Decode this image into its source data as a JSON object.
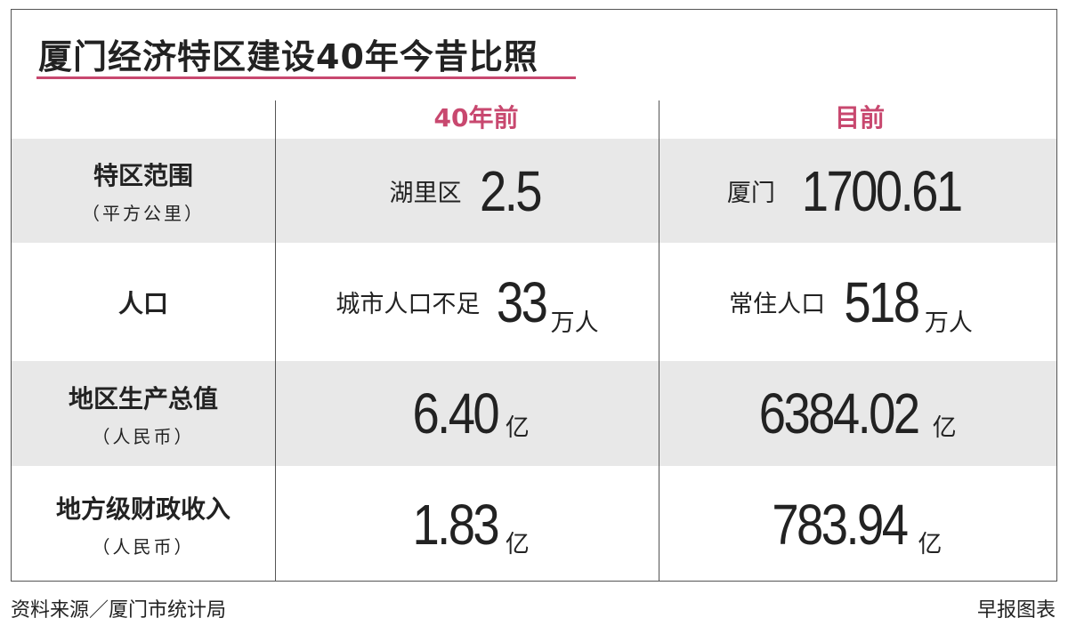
{
  "title": "厦门经济特区建设40年今昔比照",
  "table": {
    "columns": [
      "40年前",
      "目前"
    ],
    "rows": [
      {
        "label": "特区范围",
        "sublabel": "（平方公里）",
        "cells": [
          {
            "prefix": "湖里区",
            "value": "2.5"
          },
          {
            "prefix": "厦门",
            "value": "1700.61"
          }
        ]
      },
      {
        "label": "人口",
        "cells": [
          {
            "prefix": "城市人口不足",
            "value": "33",
            "unit": "万人"
          },
          {
            "prefix": "常住人口",
            "value": "518",
            "unit": "万人"
          }
        ]
      },
      {
        "label": "地区生产总值",
        "sublabel": "（人民币）",
        "cells": [
          {
            "value": "6.40",
            "unit": "亿"
          },
          {
            "value": "6384.02",
            "unit": "亿"
          }
        ]
      },
      {
        "label": "地方级财政收入",
        "sublabel": "（人民币）",
        "cells": [
          {
            "value": "1.83",
            "unit": "亿"
          },
          {
            "value": "783.94",
            "unit": "亿"
          }
        ]
      }
    ]
  },
  "footer": {
    "source": "资料来源／厦门市统计局",
    "credit": "早报图表"
  }
}
